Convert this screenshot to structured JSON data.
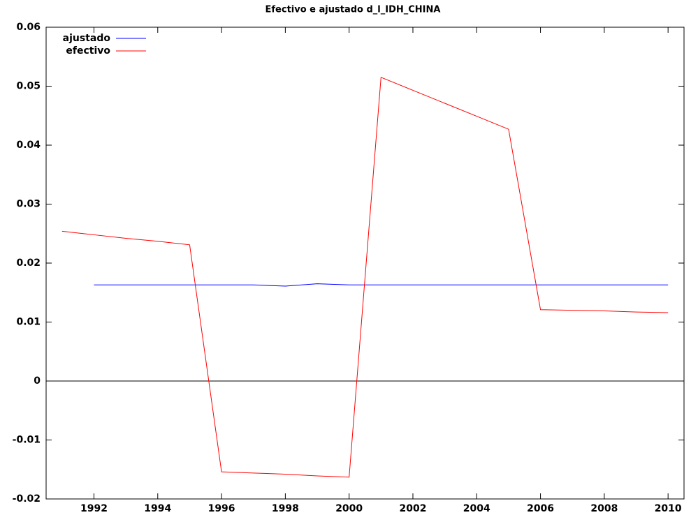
{
  "chart_data": {
    "type": "line",
    "title": "Efectivo e ajustado d_l_IDH_CHINA",
    "x": [
      1991,
      1992,
      1993,
      1994,
      1995,
      1996,
      1997,
      1998,
      1999,
      2000,
      2001,
      2002,
      2003,
      2004,
      2005,
      2006,
      2007,
      2008,
      2009,
      2010
    ],
    "series": [
      {
        "name": "ajustado",
        "color": "#0000ff",
        "values": [
          null,
          0.0163,
          0.0163,
          0.0163,
          0.0163,
          0.0163,
          0.0163,
          0.0161,
          0.0165,
          0.0163,
          0.0163,
          0.0163,
          0.0163,
          0.0163,
          0.0163,
          0.0163,
          0.0163,
          0.0163,
          0.0163,
          0.0163
        ]
      },
      {
        "name": "efectivo",
        "color": "#ff0000",
        "values": [
          0.0254,
          0.0248,
          0.0242,
          0.0237,
          0.0231,
          -0.0154,
          -0.0156,
          -0.0158,
          -0.0161,
          -0.0163,
          0.0515,
          0.0493,
          0.0471,
          0.0449,
          0.0427,
          0.0121,
          0.012,
          0.0119,
          0.0117,
          0.0116
        ]
      }
    ],
    "xlim": [
      1990.5,
      2010.5
    ],
    "xticks": [
      1992,
      1994,
      1996,
      1998,
      2000,
      2002,
      2004,
      2006,
      2008,
      2010
    ],
    "ylim": [
      -0.02,
      0.06
    ],
    "yticks": [
      -0.02,
      -0.01,
      0,
      0.01,
      0.02,
      0.03,
      0.04,
      0.05,
      0.06
    ],
    "zero_line": true,
    "legend": "top-left"
  }
}
